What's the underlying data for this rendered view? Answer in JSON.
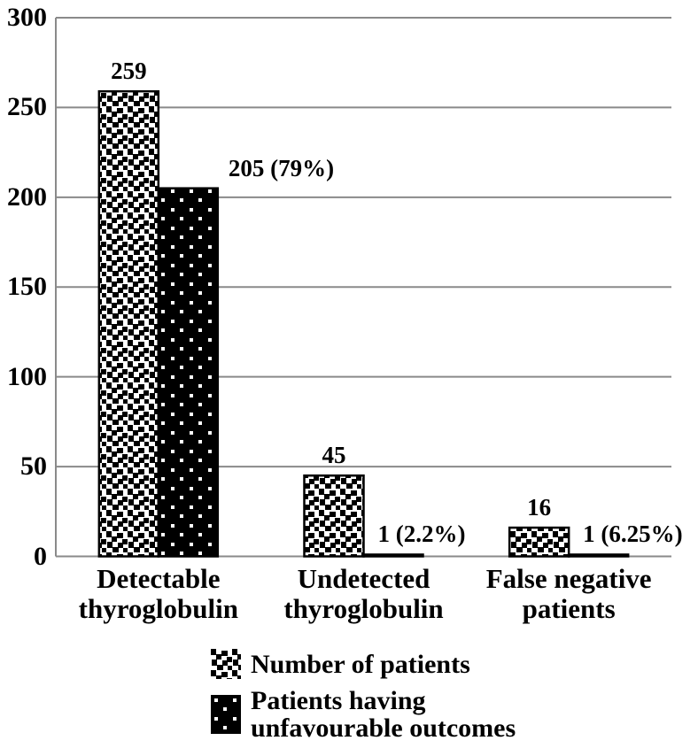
{
  "chart_data": {
    "type": "bar",
    "title": "",
    "categories": [
      "Detectable thyroglobulin",
      "Undetected thyroglobulin",
      "False negative patients"
    ],
    "category_display_lines": [
      [
        "Detectable",
        "thyroglobulin"
      ],
      [
        "Undetected",
        "thyroglobulin"
      ],
      [
        "False negative",
        "patients"
      ]
    ],
    "series": [
      {
        "name": "Number of patients",
        "pattern": "black-squares-on-white",
        "values": [
          259,
          45,
          16
        ],
        "data_labels": [
          "259",
          "45",
          "16"
        ]
      },
      {
        "name": "Patients having unfavourable outcomes",
        "pattern": "white-dots-on-black",
        "values": [
          205,
          1,
          1
        ],
        "data_labels": [
          "205 (79%)",
          "1 (2.2%)",
          "1 (6.25%)"
        ]
      }
    ],
    "ylim": [
      0,
      300
    ],
    "yticks": [
      0,
      50,
      100,
      150,
      200,
      250,
      300
    ],
    "grid": "horizontal-gridlines",
    "legend_position": "bottom-center",
    "colors": {
      "text": "#000000",
      "background": "#ffffff",
      "gridline": "#8a8a8a",
      "pattern_foreground": "#000000"
    }
  },
  "legend": {
    "items": [
      {
        "lines": [
          "Number of patients"
        ],
        "swatch": "squares-pattern"
      },
      {
        "lines": [
          "Patients having",
          "unfavourable outcomes"
        ],
        "swatch": "dots-pattern"
      }
    ]
  }
}
